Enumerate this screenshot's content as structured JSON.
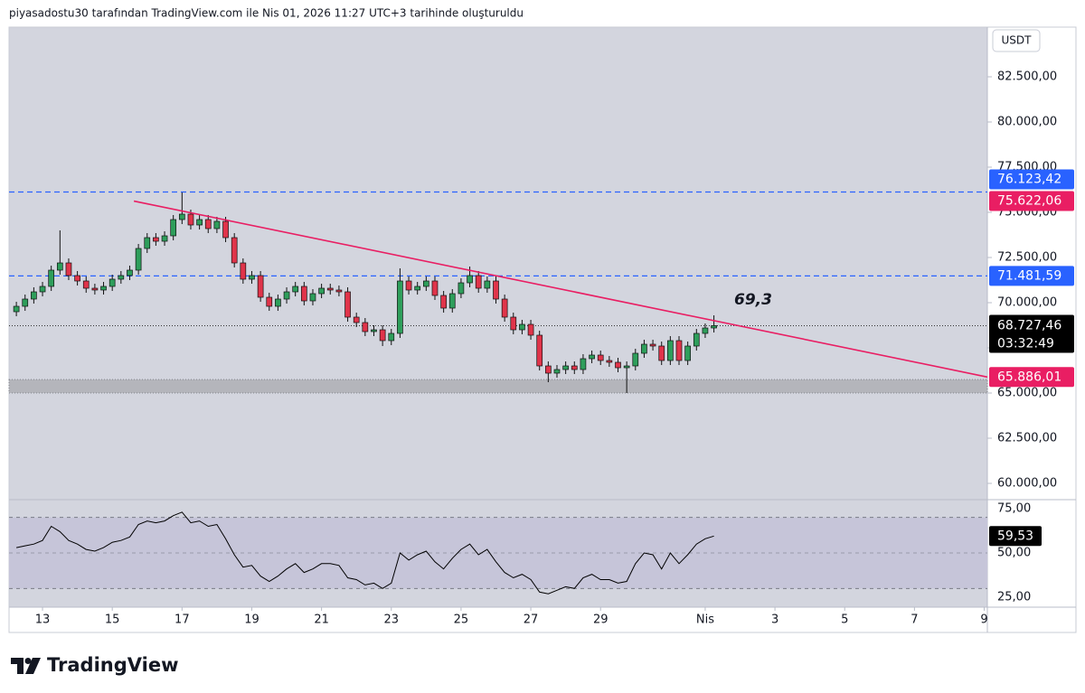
{
  "header": "piyasadostu30 tarafından TradingView.com ile Nis 01, 2026 11:27 UTC+3 tarihinde oluşturuldu",
  "brand": "TradingView",
  "chart_data": {
    "type": "candlestick",
    "currency": "USDT",
    "up_color": "#2e9e5b",
    "down_color": "#e0344a",
    "xlim": [
      12.04,
      40.09
    ],
    "xticks": [
      13,
      15,
      17,
      19,
      21,
      23,
      25,
      27,
      29,
      {
        "value": 32,
        "label": "Nis"
      },
      {
        "value": 34,
        "label": "3"
      },
      {
        "value": 36,
        "label": "5"
      },
      {
        "value": 38,
        "label": "7"
      },
      {
        "value": 40,
        "label": "9"
      }
    ],
    "ylim": [
      59100,
      85250
    ],
    "yticks": [
      {
        "value": 60000,
        "label": "60.000,00"
      },
      {
        "value": 62500,
        "label": "62.500,00"
      },
      {
        "value": 65000,
        "label": "65.000,00"
      },
      {
        "value": 67500,
        "label": "67.500,00"
      },
      {
        "value": 70000,
        "label": "70.000,00"
      },
      {
        "value": 72500,
        "label": "72.500,00"
      },
      {
        "value": 75000,
        "label": "75.000,00"
      },
      {
        "value": 77500,
        "label": "77.500,00"
      },
      {
        "value": 80000,
        "label": "80.000,00"
      },
      {
        "value": 82500,
        "label": "82.500,00"
      }
    ],
    "x": [
      12.25,
      12.5,
      12.75,
      13,
      13.25,
      13.5,
      13.75,
      14,
      14.25,
      14.5,
      14.75,
      15,
      15.25,
      15.5,
      15.75,
      16,
      16.25,
      16.5,
      16.75,
      17,
      17.25,
      17.5,
      17.75,
      18,
      18.25,
      18.5,
      18.75,
      19,
      19.25,
      19.5,
      19.75,
      20,
      20.25,
      20.5,
      20.75,
      21,
      21.25,
      21.5,
      21.75,
      22,
      22.25,
      22.5,
      22.75,
      23,
      23.25,
      23.5,
      23.75,
      24,
      24.25,
      24.5,
      24.75,
      25,
      25.25,
      25.5,
      25.75,
      26,
      26.25,
      26.5,
      26.75,
      27,
      27.25,
      27.5,
      27.75,
      28,
      28.25,
      28.5,
      28.75,
      29,
      29.25,
      29.5,
      29.75,
      30,
      30.25,
      30.5,
      30.75,
      31,
      31.25,
      31.5,
      31.75,
      32,
      32.25
    ],
    "open": [
      69500,
      69800,
      70200,
      70600,
      70900,
      71800,
      72200,
      71500,
      71200,
      70800,
      70700,
      70900,
      71300,
      71500,
      71800,
      73000,
      73600,
      73400,
      73700,
      74600,
      74900,
      74300,
      74600,
      74100,
      74500,
      73600,
      72200,
      71300,
      71500,
      70300,
      69800,
      70200,
      70600,
      70900,
      70100,
      70500,
      70800,
      70700,
      70600,
      69200,
      68900,
      68400,
      68500,
      67900,
      68300,
      71200,
      70700,
      70900,
      71200,
      70400,
      69700,
      70500,
      71100,
      71500,
      70800,
      71200,
      70200,
      69200,
      68500,
      68800,
      68200,
      66500,
      66100,
      66300,
      66500,
      66300,
      66900,
      67100,
      66800,
      66700,
      66400,
      66500,
      67200,
      67700,
      67600,
      66800,
      67900,
      66800,
      67600,
      68300,
      68600
    ],
    "high": [
      70050,
      70450,
      70850,
      71150,
      72050,
      74000,
      72450,
      71750,
      71450,
      71050,
      71150,
      71550,
      71750,
      72050,
      73250,
      73850,
      73850,
      73950,
      74850,
      76100,
      75150,
      74850,
      74850,
      74750,
      74750,
      73850,
      72450,
      71750,
      71750,
      70550,
      70450,
      70850,
      71150,
      71150,
      70750,
      71050,
      71050,
      70950,
      70850,
      69450,
      69150,
      68750,
      68750,
      68550,
      71900,
      71450,
      71150,
      71450,
      71450,
      70650,
      70750,
      71350,
      72000,
      71750,
      71450,
      71450,
      70450,
      69450,
      69050,
      69050,
      68450,
      66750,
      66550,
      66750,
      66750,
      67150,
      67350,
      67350,
      67050,
      66950,
      66750,
      67450,
      67950,
      67950,
      67850,
      68150,
      68150,
      67850,
      68550,
      68850,
      69300
    ],
    "low": [
      69250,
      69550,
      69950,
      70350,
      70650,
      71550,
      71250,
      70950,
      70550,
      70450,
      70450,
      70650,
      71050,
      71250,
      71550,
      72750,
      73150,
      73150,
      73450,
      74350,
      74050,
      74050,
      73850,
      73850,
      73350,
      71950,
      71050,
      71050,
      70050,
      69550,
      69550,
      69950,
      70350,
      69850,
      69850,
      70250,
      70450,
      70350,
      68950,
      68650,
      68150,
      68150,
      67600,
      67650,
      68050,
      70450,
      70450,
      70650,
      70150,
      69450,
      69450,
      70250,
      70850,
      70550,
      70550,
      69950,
      68950,
      68250,
      68250,
      67950,
      66250,
      65600,
      65850,
      66050,
      66050,
      66050,
      66650,
      66550,
      66450,
      66150,
      65000,
      66250,
      66950,
      67350,
      66550,
      66550,
      66550,
      66550,
      67350,
      68050,
      68350
    ],
    "close": [
      69800,
      70200,
      70600,
      70900,
      71800,
      72200,
      71500,
      71200,
      70800,
      70700,
      70900,
      71300,
      71500,
      71800,
      73000,
      73600,
      73400,
      73700,
      74600,
      74900,
      74300,
      74600,
      74100,
      74500,
      73600,
      72200,
      71300,
      71500,
      70300,
      69800,
      70200,
      70600,
      70900,
      70100,
      70500,
      70800,
      70700,
      70600,
      69200,
      68900,
      68400,
      68500,
      67900,
      68300,
      71200,
      70700,
      70900,
      71200,
      70400,
      69700,
      70500,
      71100,
      71500,
      70800,
      71200,
      70200,
      69200,
      68500,
      68800,
      68200,
      66500,
      66100,
      66300,
      66500,
      66300,
      66900,
      67100,
      66800,
      66700,
      66400,
      66500,
      67200,
      67700,
      67600,
      66800,
      67900,
      66800,
      67600,
      68300,
      68600,
      68727.46
    ],
    "last_price": {
      "value": 68727.46,
      "label": "68.727,46",
      "countdown": "03:32:49"
    },
    "levels": [
      {
        "value": 76123.42,
        "label": "76.123,42",
        "color": "#2962ff",
        "dashed": true
      },
      {
        "value": 75622.06,
        "label": "75.622,06",
        "color": "#e91e63",
        "dashed": false
      },
      {
        "value": 71481.59,
        "label": "71.481,59",
        "color": "#2962ff",
        "dashed": true
      },
      {
        "value": 65886.01,
        "label": "65.886,01",
        "color": "#e91e63",
        "dashed": false
      }
    ],
    "trendline": {
      "color": "#e91e63",
      "points": [
        [
          15.62,
          75622.06
        ],
        [
          40.09,
          65886.01
        ]
      ]
    },
    "zone": {
      "from": 65000,
      "to": 65750
    },
    "annotation": "69,3",
    "rsi": {
      "ylim": [
        19.5,
        80
      ],
      "yticks": [
        {
          "value": 25,
          "label": "25,00"
        },
        {
          "value": 50,
          "label": "50,00"
        },
        {
          "value": 75,
          "label": "75,00"
        }
      ],
      "bands": [
        30,
        70
      ],
      "color": "#000000",
      "values": [
        53,
        54,
        55,
        57,
        65,
        62,
        57,
        55,
        52,
        51,
        53,
        56,
        57,
        59,
        66,
        68,
        67,
        68,
        71,
        73,
        67,
        68,
        65,
        66,
        58,
        49,
        42,
        43,
        37,
        34,
        37,
        41,
        44,
        39,
        41,
        44,
        44,
        43,
        36,
        35,
        32,
        33,
        30,
        33,
        50,
        46,
        49,
        51,
        45,
        41,
        47,
        52,
        55,
        49,
        52,
        45,
        39,
        36,
        38,
        35,
        28,
        27,
        29,
        31,
        30,
        36,
        38,
        35,
        35,
        33,
        34,
        44,
        50,
        49,
        41,
        50,
        44,
        49,
        55,
        58,
        59.53
      ],
      "last_label": "59,53"
    }
  }
}
